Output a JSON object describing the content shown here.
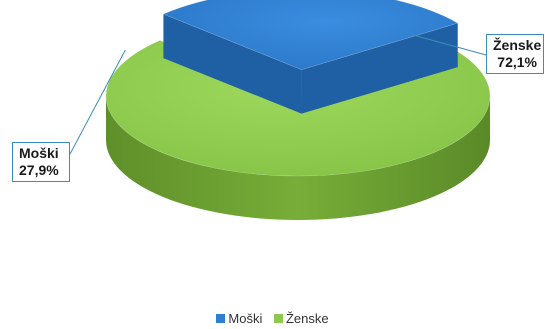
{
  "chart_data": {
    "type": "pie",
    "style": "3d-exploded",
    "categories": [
      "Moški",
      "Ženske"
    ],
    "values": [
      27.9,
      72.1
    ],
    "data_labels": [
      "27,9%",
      "72,1%"
    ],
    "colors": [
      "#2f7fd0",
      "#8cc94d"
    ],
    "side_colors": [
      "#1f5fa3",
      "#64952e"
    ],
    "exploded": "Moški",
    "legend_position": "bottom",
    "grid": false
  },
  "legend": {
    "items": [
      {
        "label": "Moški",
        "color": "#2f7fd0"
      },
      {
        "label": "Ženske",
        "color": "#8cc94d"
      }
    ]
  }
}
